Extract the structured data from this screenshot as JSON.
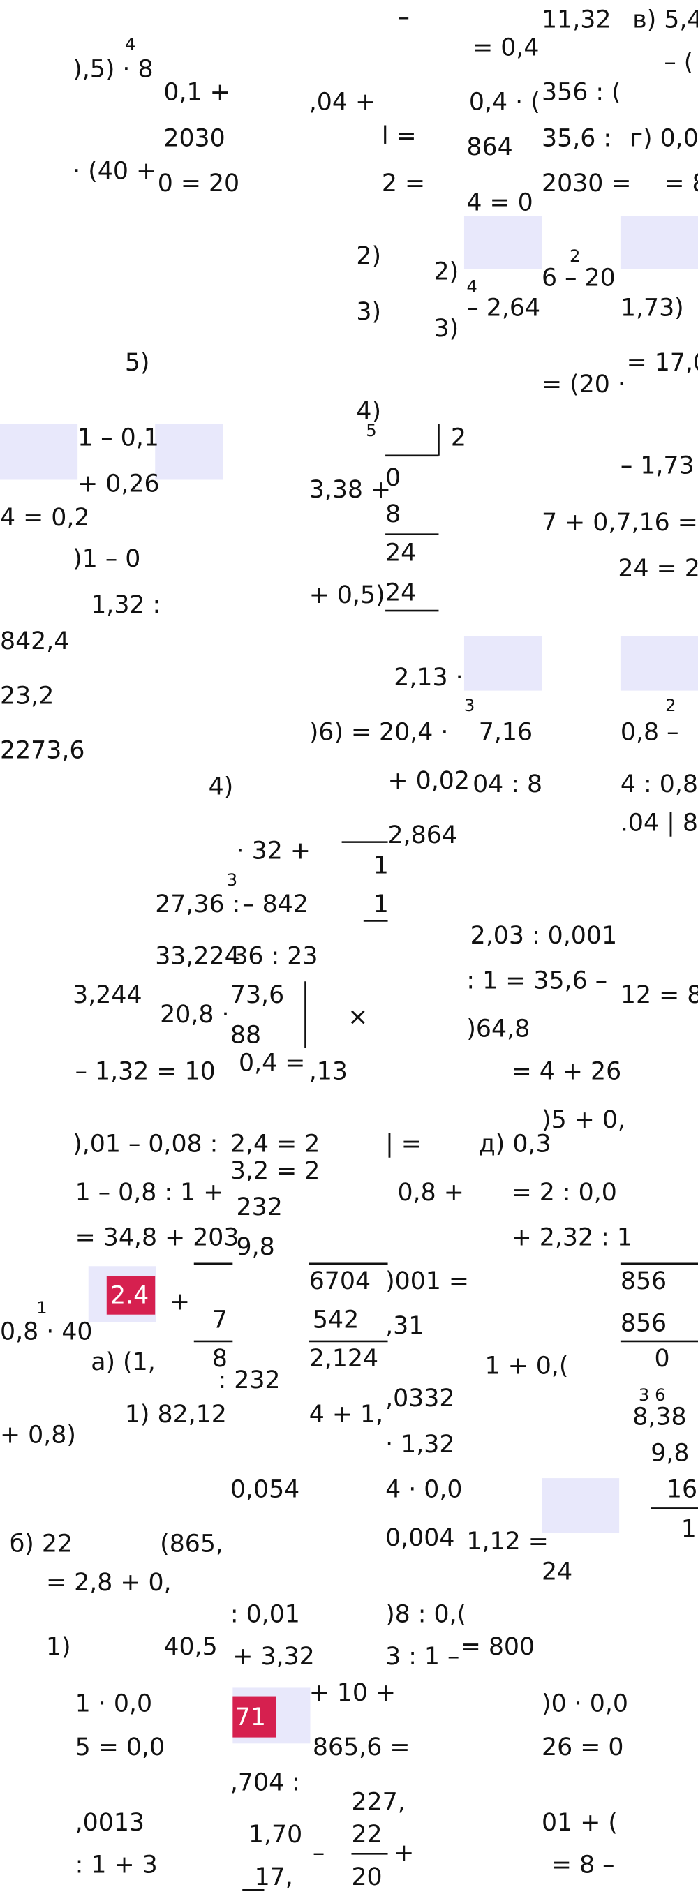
{
  "fragments": [
    "–",
    "= 0,4",
    "11,32",
    "в) 5,4",
    "– (",
    "),5) · 8",
    "4",
    "0,1 +",
    ",04 +",
    "0,4 · (",
    "356 : (",
    "2030",
    "l =",
    "864",
    "35,6 :",
    "г) 0,0",
    "· (40 +",
    "0 = 20",
    "2 =",
    "4 = 0",
    "2030 =",
    "= 8",
    "2)",
    "2)",
    "2",
    "6 – 20",
    "4",
    "3)",
    "3)",
    "– 2,64",
    "1,73)",
    "5)",
    "= 17,0",
    "= (20 ·",
    "4)",
    "2",
    "1 – 0,1",
    "+ 0,26",
    "5",
    "3,38 +",
    "0",
    "– 1,73",
    "4 = 0,2",
    "8",
    "7 + 0,7,16 =",
    ")1 – 0",
    "24",
    "24 = 2,",
    "1,32 :",
    "+ 0,5)",
    "24",
    "842,4",
    "2,13 ·",
    "23,2",
    "3",
    "2",
    "2273,6",
    ")6) = 20,4 ·",
    "7,16",
    "0,8 –",
    "+ 0,02",
    "04 : 8",
    "4 : 0,8",
    "4)",
    ".04 | 8",
    "· 32 +",
    "2,864",
    "1",
    "3",
    "27,36 :",
    "– 842",
    "1",
    "2,03 : 0,001",
    "33,224",
    "36 : 23",
    ": 1 = 35,6 –",
    "3,244",
    "73,6",
    "12 = 8",
    "20,8 ·",
    "×",
    "88",
    ")64,8",
    "– 1,32 = 10",
    "0,4 =",
    ",13",
    "= 4 + 26",
    ")5 + 0,",
    "),01 – 0,08 :",
    "2,4 = 2",
    "| =",
    "д) 0,3",
    "1 – 0,8 : 1 +",
    "3,2 = 2",
    "0,8 +",
    "= 2 : 0,0",
    "232",
    "= 34,8 + 203",
    "9,8",
    "+ 2,32 : 1",
    "6704",
    ")001 =",
    "856",
    "+",
    "1",
    "0,8 · 40",
    "7",
    "542",
    ",31",
    "856",
    "а) (1,",
    "8",
    ": 232",
    "2,124",
    "1 + 0,(",
    "0",
    "1) 82,12",
    "4 + 1,",
    ",0332",
    "3 6",
    "8,38",
    "+ 0,8)",
    "· 1,32",
    "9,8",
    "0,054",
    "4 · 0,0",
    "16",
    "б) 22",
    "(865,",
    "0,004",
    "1,12 =",
    "1",
    "= 2,8 + 0,",
    "24",
    ": 0,01",
    ")8 : 0,(",
    "1)",
    "40,5",
    "+ 3,32",
    "3 : 1 –",
    "= 800",
    "+ 10 +",
    "1 · 0,0",
    ")0 · 0,0",
    "5 = 0,0",
    "865,6 =",
    "26 = 0",
    ",704 :",
    "227,",
    ",0013",
    "1,70",
    "22",
    "01 + (",
    ": 1 + 3",
    "17,",
    "–",
    "20",
    "+",
    "= 8 –"
  ],
  "badges": [
    "2.4",
    "71"
  ]
}
